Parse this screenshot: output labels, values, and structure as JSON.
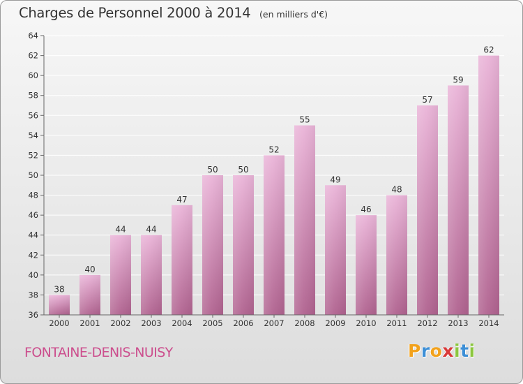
{
  "header": {
    "title": "Charges de Personnel 2000 à 2014",
    "subtitle": "(en milliers d'€)"
  },
  "footer": {
    "commune": "FONTAINE-DENIS-NUISY",
    "brand_letters": [
      "P",
      "r",
      "o",
      "x",
      "i",
      "t",
      "i"
    ],
    "brand_colors": [
      "#f2a21d",
      "#3d8fd6",
      "#f2a21d",
      "#d93a3a",
      "#8cc63f",
      "#3d8fd6",
      "#8cc63f"
    ]
  },
  "colors": {
    "bar_top": "#eab4d8",
    "bar_bottom": "#b0628f",
    "grid": "#ffffff",
    "axis": "#666666"
  },
  "chart_data": {
    "type": "bar",
    "title": "Charges de Personnel 2000 à 2014",
    "subtitle": "(en milliers d'€)",
    "categories": [
      "2000",
      "2001",
      "2002",
      "2003",
      "2004",
      "2005",
      "2006",
      "2007",
      "2008",
      "2009",
      "2010",
      "2011",
      "2012",
      "2013",
      "2014"
    ],
    "values": [
      38,
      40,
      44,
      44,
      47,
      50,
      50,
      52,
      55,
      49,
      46,
      48,
      57,
      59,
      62
    ],
    "ylim": [
      36,
      64
    ],
    "yticks": [
      36,
      38,
      40,
      42,
      44,
      46,
      48,
      50,
      52,
      54,
      56,
      58,
      60,
      62,
      64
    ],
    "grid": true,
    "data_labels": true
  }
}
